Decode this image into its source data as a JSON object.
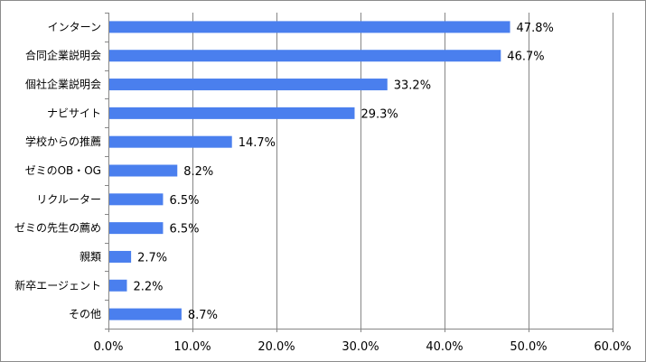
{
  "chart_data": {
    "type": "bar",
    "orientation": "horizontal",
    "categories": [
      "インターン",
      "合同企業説明会",
      "個社企業説明会",
      "ナビサイト",
      "学校からの推薦",
      "ゼミのOB・OG",
      "リクルーター",
      "ゼミの先生の薦め",
      "親類",
      "新卒エージェント",
      "その他"
    ],
    "values": [
      47.8,
      46.7,
      33.2,
      29.3,
      14.7,
      8.2,
      6.5,
      6.5,
      2.7,
      2.2,
      8.7
    ],
    "value_labels": [
      "47.8%",
      "46.7%",
      "33.2%",
      "29.3%",
      "14.7%",
      "8.2%",
      "6.5%",
      "6.5%",
      "2.7%",
      "2.2%",
      "8.7%"
    ],
    "xlim": [
      0,
      60
    ],
    "x_ticks": [
      0,
      10,
      20,
      30,
      40,
      50,
      60
    ],
    "x_tick_labels": [
      "0.0%",
      "10.0%",
      "20.0%",
      "30.0%",
      "40.0%",
      "50.0%",
      "60.0%"
    ],
    "title": "",
    "xlabel": "",
    "ylabel": "",
    "grid": true,
    "legend": "none",
    "colors": {
      "bar": "#4a7fee",
      "grid": "#868686",
      "axis": "#868686",
      "frame": "#8c8c8c"
    }
  }
}
